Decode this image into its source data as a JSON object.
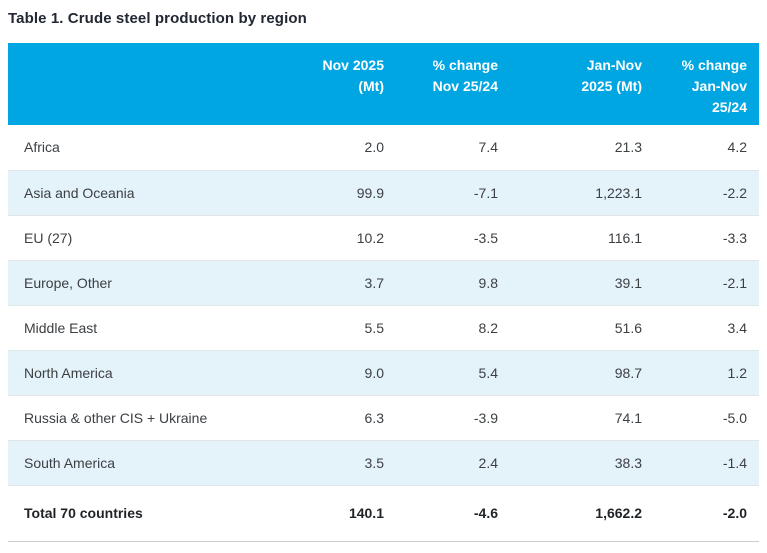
{
  "page_title": "Table 1. Crude steel production by region",
  "header_display": {
    "col_region": [],
    "col_nov_2025": [
      "Nov 2025",
      "(Mt)"
    ],
    "col_pct_change_nov": [
      "% change",
      "Nov 25/24"
    ],
    "col_jan_nov_2025": [
      "Jan-Nov",
      "2025 (Mt)"
    ],
    "col_pct_change_jan_nov": [
      "% change",
      "Jan-Nov",
      "25/24"
    ]
  },
  "chart_data": {
    "type": "table",
    "title": "Table 1. Crude steel production by region",
    "columns": [
      "",
      "Nov 2025 (Mt)",
      "% change Nov 25/24",
      "Jan-Nov 2025 (Mt)",
      "% change Jan-Nov 25/24"
    ],
    "rows": [
      {
        "region": "Africa",
        "values": [
          "2.0",
          "7.4",
          "21.3",
          "4.2"
        ]
      },
      {
        "region": "Asia and Oceania",
        "values": [
          "99.9",
          "-7.1",
          "1,223.1",
          "-2.2"
        ]
      },
      {
        "region": "EU (27)",
        "values": [
          "10.2",
          "-3.5",
          "116.1",
          "-3.3"
        ]
      },
      {
        "region": "Europe, Other",
        "values": [
          "3.7",
          "9.8",
          "39.1",
          "-2.1"
        ]
      },
      {
        "region": "Middle East",
        "values": [
          "5.5",
          "8.2",
          "51.6",
          "3.4"
        ]
      },
      {
        "region": "North America",
        "values": [
          "9.0",
          "5.4",
          "98.7",
          "1.2"
        ]
      },
      {
        "region": "Russia & other CIS + Ukraine",
        "values": [
          "6.3",
          "-3.9",
          "74.1",
          "-5.0"
        ]
      },
      {
        "region": "South America",
        "values": [
          "3.5",
          "2.4",
          "38.3",
          "-1.4"
        ]
      },
      {
        "region": "Total 70 countries",
        "values": [
          "140.1",
          "-4.6",
          "1,662.2",
          "-2.0"
        ],
        "is_total": true
      }
    ]
  },
  "colors": {
    "header_bg": "#00A6E2",
    "alt_row_bg": "#E4F2FA",
    "title_text": "#212733",
    "body_text": "#3C4043",
    "total_text": "#1F2327",
    "row_border": "#E1E5E8",
    "bottom_border": "#C9CFD4"
  }
}
